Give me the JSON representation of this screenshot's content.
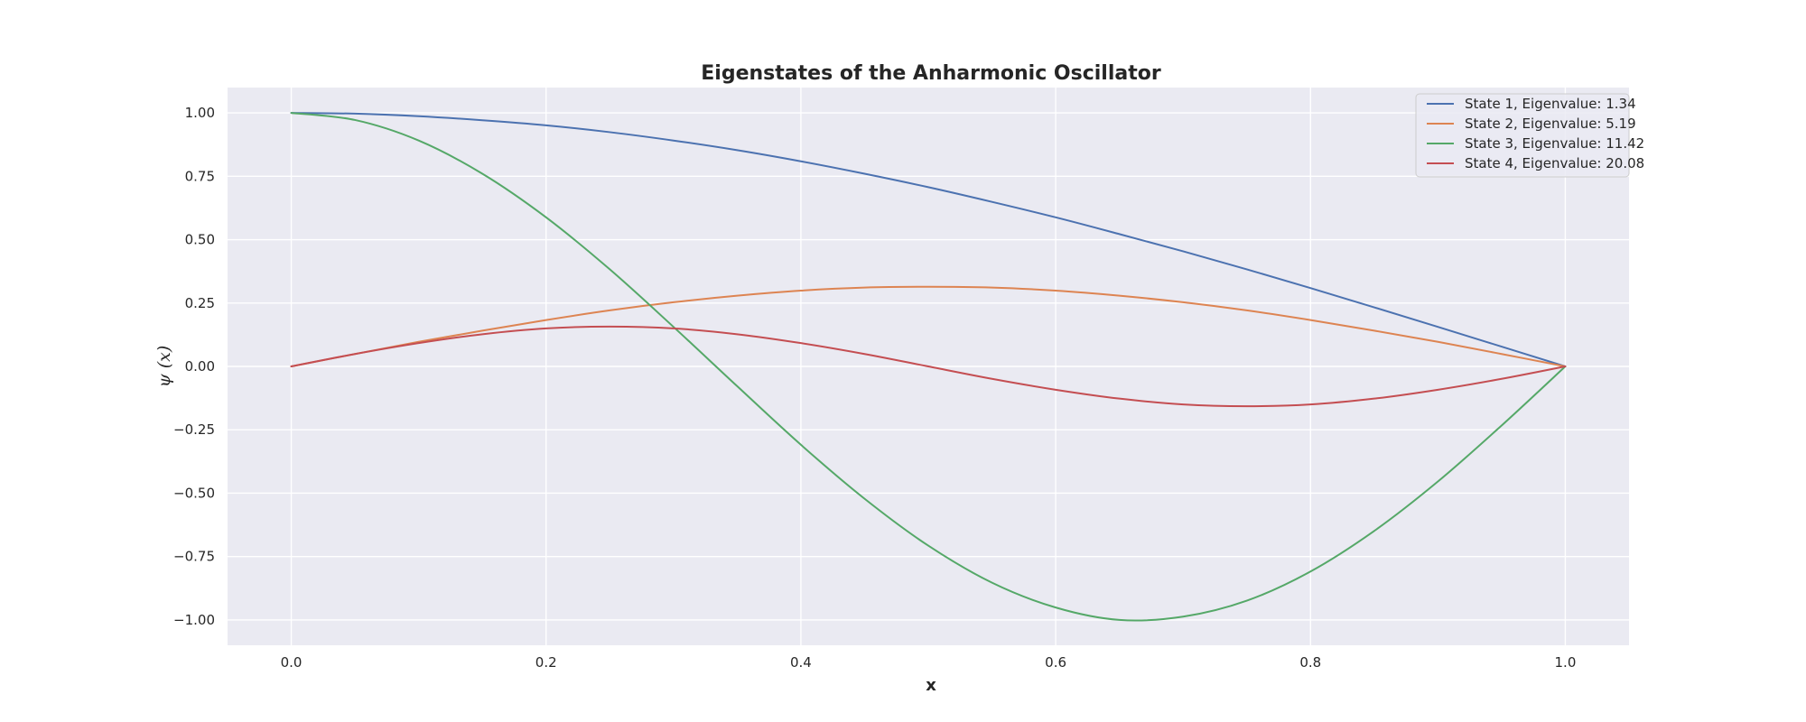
{
  "chart_data": {
    "type": "line",
    "title": "Eigenstates of the Anharmonic Oscillator",
    "xlabel": "x",
    "ylabel": "ψ (x)",
    "xlim": [
      -0.05,
      1.05
    ],
    "ylim": [
      -1.1,
      1.1
    ],
    "xticks": [
      0.0,
      0.2,
      0.4,
      0.6,
      0.8,
      1.0
    ],
    "xtick_labels": [
      "0.0",
      "0.2",
      "0.4",
      "0.6",
      "0.8",
      "1.0"
    ],
    "yticks": [
      1.0,
      0.75,
      0.5,
      0.25,
      0.0,
      -0.25,
      -0.5,
      -0.75,
      -1.0
    ],
    "ytick_labels": [
      "1.00",
      "0.75",
      "0.50",
      "0.25",
      "0.00",
      "−0.25",
      "−0.50",
      "−0.75",
      "−1.00"
    ],
    "grid": true,
    "legend_position": "top-right",
    "x": [
      0.0,
      0.05,
      0.1,
      0.15,
      0.2,
      0.25,
      0.3,
      0.35,
      0.4,
      0.45,
      0.5,
      0.55,
      0.6,
      0.65,
      0.7,
      0.75,
      0.8,
      0.85,
      0.9,
      0.95,
      1.0
    ],
    "series": [
      {
        "name": "State 1, Eigenvalue: 1.34",
        "color": "#4c72b0",
        "values": [
          1.0,
          0.997,
          0.987,
          0.971,
          0.951,
          0.924,
          0.891,
          0.853,
          0.809,
          0.76,
          0.707,
          0.649,
          0.588,
          0.522,
          0.454,
          0.383,
          0.309,
          0.233,
          0.156,
          0.078,
          0.0
        ]
      },
      {
        "name": "State 2, Eigenvalue: 5.19",
        "color": "#dd8452",
        "values": [
          0.0,
          0.049,
          0.097,
          0.141,
          0.183,
          0.221,
          0.253,
          0.279,
          0.299,
          0.311,
          0.314,
          0.311,
          0.299,
          0.279,
          0.253,
          0.221,
          0.183,
          0.141,
          0.097,
          0.049,
          0.0
        ]
      },
      {
        "name": "State 3, Eigenvalue: 11.42",
        "color": "#55a868",
        "values": [
          1.0,
          0.972,
          0.891,
          0.76,
          0.588,
          0.383,
          0.156,
          -0.078,
          -0.309,
          -0.522,
          -0.707,
          -0.853,
          -0.951,
          -1.0,
          -0.987,
          -0.924,
          -0.809,
          -0.649,
          -0.454,
          -0.233,
          0.0
        ]
      },
      {
        "name": "State 4, Eigenvalue: 20.08",
        "color": "#c44e52",
        "values": [
          0.0,
          0.049,
          0.092,
          0.127,
          0.15,
          0.157,
          0.15,
          0.127,
          0.092,
          0.049,
          0.0,
          -0.049,
          -0.092,
          -0.127,
          -0.15,
          -0.157,
          -0.15,
          -0.127,
          -0.092,
          -0.049,
          0.0
        ]
      }
    ]
  }
}
